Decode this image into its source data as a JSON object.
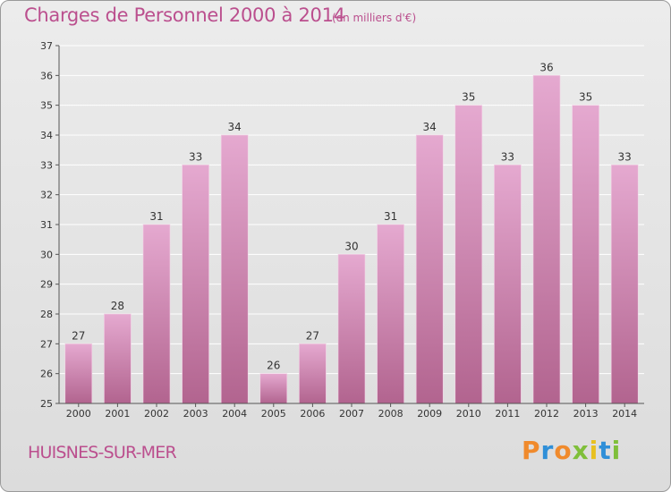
{
  "title": "Charges de Personnel 2000 à 2014",
  "subtitle": "(en milliers d'€)",
  "commune": "HUISNES-SUR-MER",
  "logo": {
    "letters": [
      "P",
      "r",
      "o",
      "x",
      "i",
      "t",
      "i"
    ],
    "colors": [
      "#f08a2c",
      "#2f8fd8",
      "#f08a2c",
      "#7fbf3a",
      "#e8c020",
      "#2f8fd8",
      "#7fbf3a"
    ]
  },
  "colors": {
    "bar_top": "#e5a9d0",
    "bar_bottom": "#b2648f",
    "grid": "#ffffff",
    "axis": "#555555",
    "text": "#333333"
  },
  "chart_data": {
    "type": "bar",
    "categories": [
      "2000",
      "2001",
      "2002",
      "2003",
      "2004",
      "2005",
      "2006",
      "2007",
      "2008",
      "2009",
      "2010",
      "2011",
      "2012",
      "2013",
      "2014"
    ],
    "values": [
      27,
      28,
      31,
      33,
      34,
      26,
      27,
      30,
      31,
      34,
      35,
      33,
      36,
      35,
      33
    ],
    "ylim": [
      25,
      37
    ],
    "yticks": [
      25,
      26,
      27,
      28,
      29,
      30,
      31,
      32,
      33,
      34,
      35,
      36,
      37
    ],
    "grid": true
  }
}
